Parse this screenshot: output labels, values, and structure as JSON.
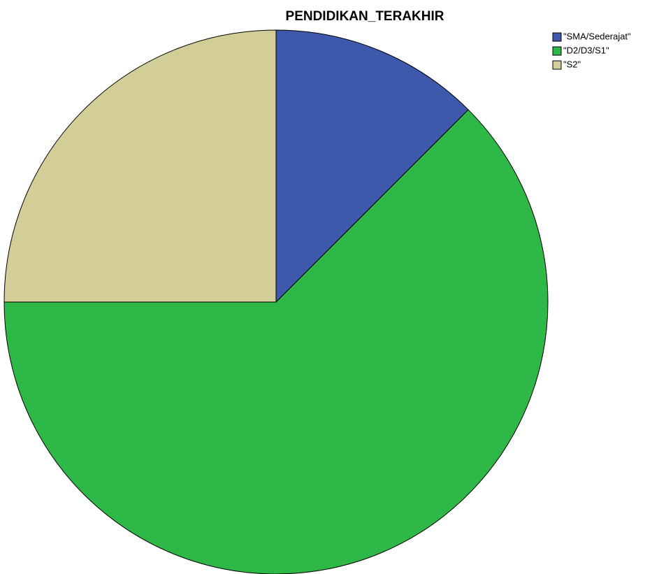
{
  "chart_data": {
    "type": "pie",
    "title": "PENDIDIKAN_TERAKHIR",
    "categories": [
      "\"SMA/Sederajat\"",
      "\"D2/D3/S1\"",
      "\"S2\""
    ],
    "values": [
      12.5,
      62.5,
      25
    ],
    "colors": [
      "#3e58ac",
      "#2eb848",
      "#d3ce97"
    ],
    "legend": "top-right"
  }
}
